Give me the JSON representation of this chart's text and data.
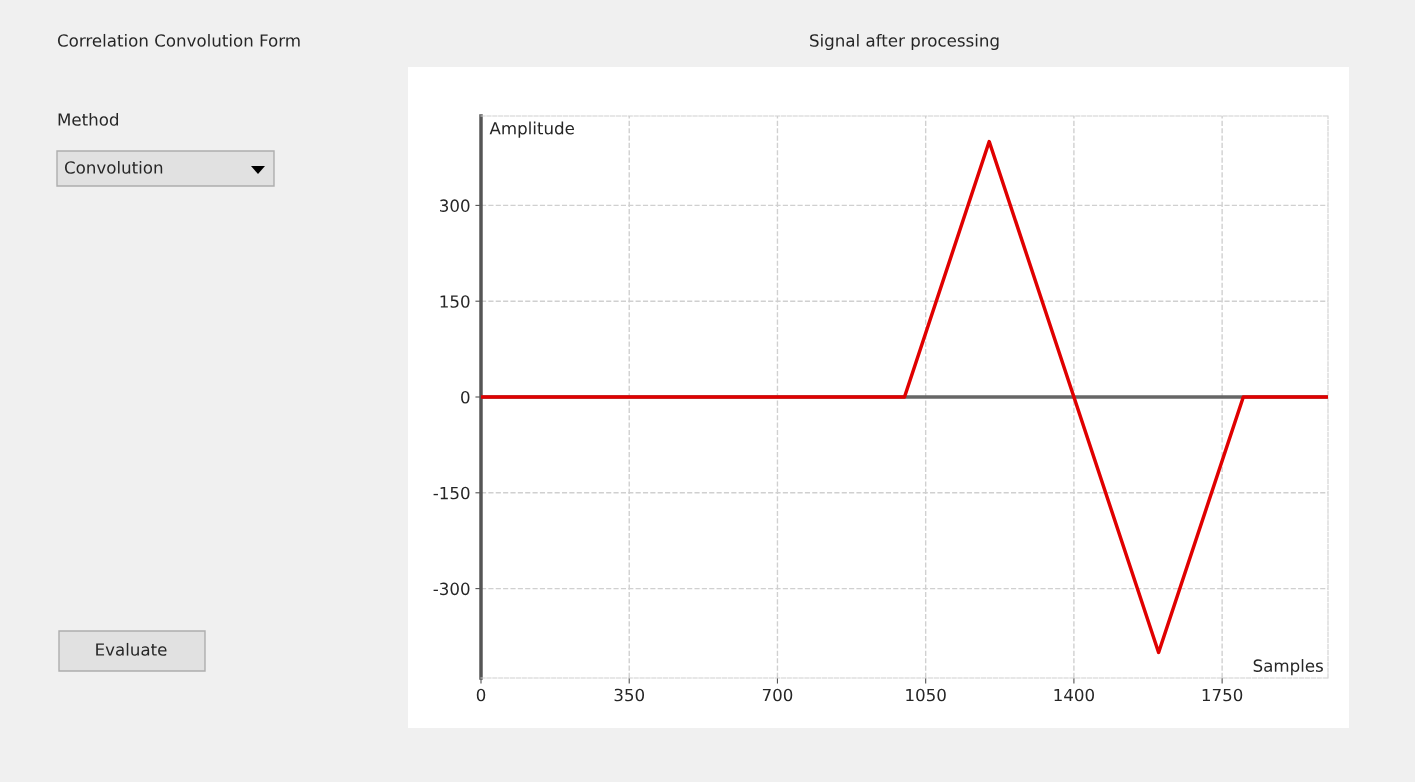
{
  "chart_data": {
    "type": "line",
    "title": "Signal after processing",
    "xlabel": "Samples",
    "ylabel": "Amplitude",
    "x": [
      0,
      1000,
      1200,
      1400,
      1600,
      1800,
      2000
    ],
    "series": [
      {
        "color": "#e00000",
        "values": [
          0,
          0,
          400,
          0,
          -400,
          0,
          0
        ]
      }
    ],
    "xlim": [
      0,
      2000
    ],
    "xticks": [
      0,
      350,
      700,
      1050,
      1400,
      1750
    ],
    "ylim": [
      -440,
      440
    ],
    "yticks": [
      -300,
      -150,
      0,
      150,
      300
    ],
    "grid": true,
    "marker": "none",
    "line_style": "solid",
    "legend": false,
    "ref_lines": [
      {
        "axis": "y",
        "value": 0,
        "color": "#666666"
      }
    ],
    "annotations": [
      "Correlation Convolution Form",
      "Method",
      "Convolution",
      "Evaluate"
    ]
  }
}
